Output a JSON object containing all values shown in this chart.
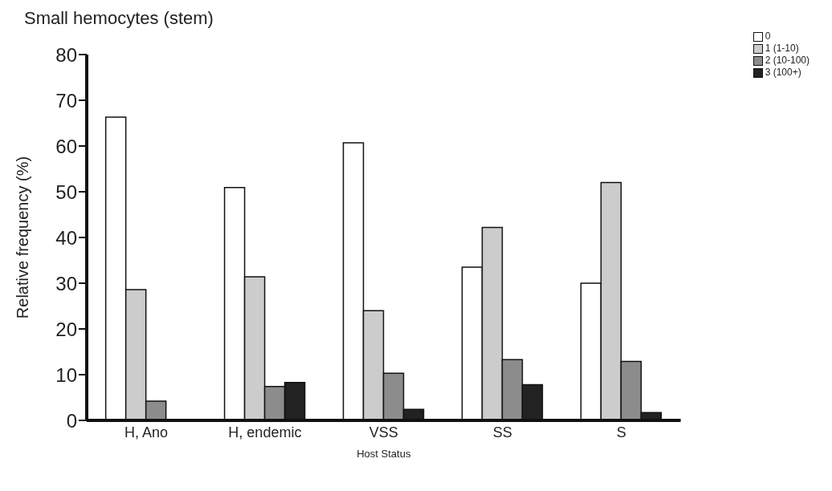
{
  "chart_data": {
    "type": "bar",
    "title": "Small hemocytes (stem)",
    "xlabel": "Host Status",
    "ylabel": "Relative frequency (%)",
    "categories": [
      "H, Ano",
      "H, endemic",
      "VSS",
      "SS",
      "S"
    ],
    "series": [
      {
        "name": "0",
        "color": "#ffffff",
        "values": [
          66.3,
          50.9,
          60.7,
          33.5,
          30
        ]
      },
      {
        "name": "1 (1-10)",
        "color": "#cccccc",
        "values": [
          28.6,
          31.4,
          24,
          42.2,
          52
        ]
      },
      {
        "name": "2 (10-100)",
        "color": "#8c8c8c",
        "values": [
          4.2,
          7.4,
          10.3,
          13.3,
          12.9
        ]
      },
      {
        "name": "3 (100+)",
        "color": "#222222",
        "values": [
          0,
          8.3,
          2.4,
          7.8,
          1.7
        ]
      }
    ],
    "ylim": [
      0,
      80
    ],
    "yticks": [
      0,
      10,
      20,
      30,
      40,
      50,
      60,
      70,
      80
    ],
    "legend": "top right"
  }
}
